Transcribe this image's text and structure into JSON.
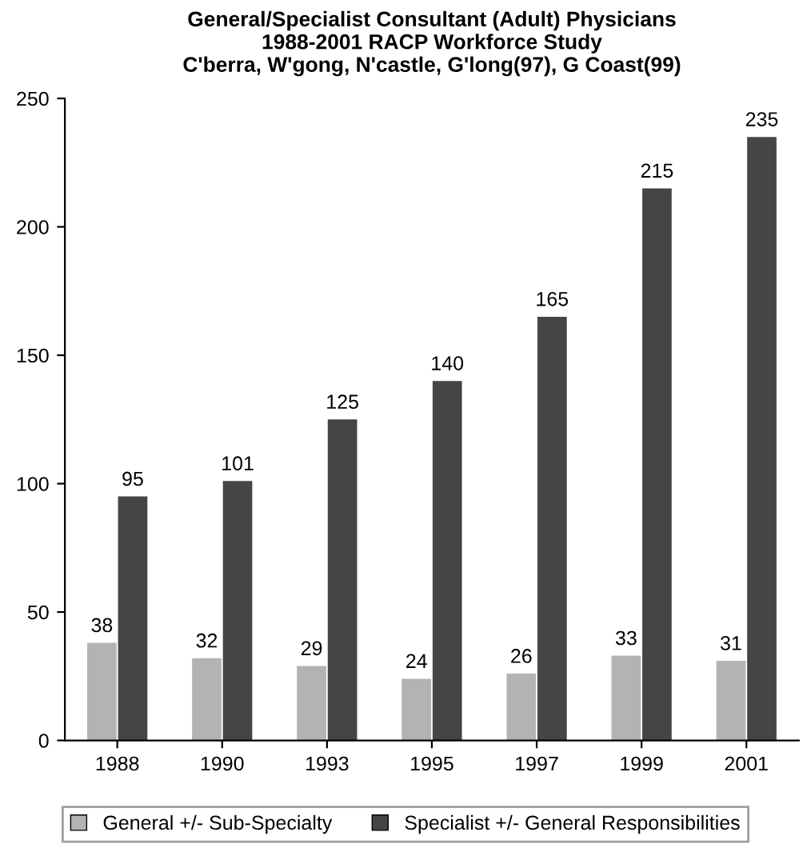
{
  "chart_data": {
    "type": "bar",
    "title": "General/Specialist Consultant (Adult) Physicians\n1988-2001 RACP Workforce Study\nC'berra, W'gong, N'castle, G'long(97), G Coast(99)",
    "categories": [
      "1988",
      "1990",
      "1993",
      "1995",
      "1997",
      "1999",
      "2001"
    ],
    "series": [
      {
        "name": "General +/- Sub-Specialty",
        "color": "#b3b3b3",
        "values": [
          38,
          32,
          29,
          24,
          26,
          33,
          31
        ]
      },
      {
        "name": "Specialist +/- General Responsibilities",
        "color": "#454545",
        "values": [
          95,
          101,
          125,
          140,
          165,
          215,
          235
        ]
      }
    ],
    "ylim": [
      0,
      250
    ],
    "yticks": [
      0,
      50,
      100,
      150,
      200,
      250
    ],
    "grid": false,
    "legend": "bottom",
    "data_labels": true
  }
}
